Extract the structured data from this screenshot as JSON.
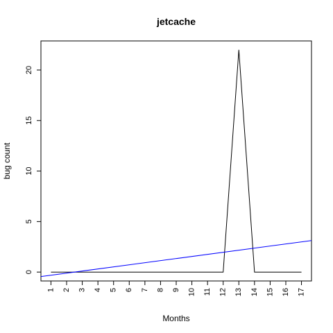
{
  "chart_data": {
    "type": "line",
    "title": "jetcache",
    "xlabel": "Months",
    "ylabel": "bug count",
    "x": [
      1,
      2,
      3,
      4,
      5,
      6,
      7,
      8,
      9,
      10,
      11,
      12,
      13,
      14,
      15,
      16,
      17
    ],
    "xlim": [
      0.36,
      17.64
    ],
    "ylim": [
      -0.88,
      22.88
    ],
    "yticks": [
      0,
      5,
      10,
      15,
      20
    ],
    "grid": false,
    "series": [
      {
        "kind": "line",
        "color": "#000000",
        "values": [
          0,
          0,
          0,
          0,
          0,
          0,
          0,
          0,
          0,
          0,
          0,
          0,
          22,
          0,
          0,
          0,
          0
        ]
      },
      {
        "kind": "trend",
        "color": "#0000ff",
        "intercept": -0.515,
        "slope": 0.206
      }
    ]
  }
}
